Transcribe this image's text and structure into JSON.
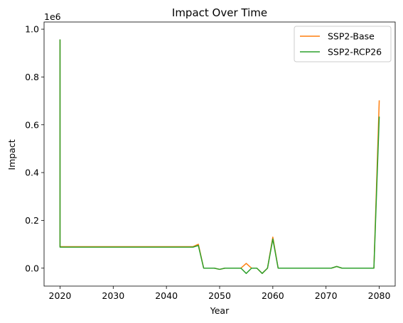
{
  "chart_data": {
    "type": "line",
    "title": "Impact Over Time",
    "xlabel": "Year",
    "ylabel": "Impact",
    "y_offset_label": "1e6",
    "xlim": [
      2017.0,
      2083.0
    ],
    "ylim": [
      -0.075,
      1.03
    ],
    "xticks": [
      2020,
      2030,
      2040,
      2050,
      2060,
      2070,
      2080
    ],
    "yticks": [
      0.0,
      0.2,
      0.4,
      0.6,
      0.8,
      1.0
    ],
    "ytick_labels": [
      "0.0",
      "0.2",
      "0.4",
      "0.6",
      "0.8",
      "1.0"
    ],
    "legend_position": "top-right",
    "grid": false,
    "series": [
      {
        "name": "SSP2-Base",
        "color": "#ff7f0e",
        "x": [
          2020,
          2020,
          2021,
          2025,
          2030,
          2035,
          2040,
          2045,
          2046,
          2047,
          2048,
          2049,
          2050,
          2051,
          2052,
          2053,
          2054,
          2055,
          2056,
          2057,
          2058,
          2059,
          2060,
          2061,
          2062,
          2065,
          2070,
          2071,
          2072,
          2073,
          2074,
          2075,
          2076,
          2077,
          2078,
          2079,
          2080
        ],
        "values": [
          0.955,
          0.09,
          0.09,
          0.09,
          0.09,
          0.09,
          0.09,
          0.09,
          0.1,
          0.0,
          0.0,
          0.0,
          -0.005,
          0.0,
          0.0,
          0.0,
          0.0,
          0.02,
          0.0,
          0.0,
          -0.022,
          0.0,
          0.13,
          0.0,
          0.0,
          0.0,
          0.0,
          0.0,
          0.007,
          0.0,
          0.0,
          0.0,
          0.0,
          0.0,
          0.0,
          0.0,
          0.7
        ]
      },
      {
        "name": "SSP2-RCP26",
        "color": "#2ca02c",
        "x": [
          2020,
          2020,
          2021,
          2025,
          2030,
          2035,
          2040,
          2045,
          2046,
          2047,
          2048,
          2049,
          2050,
          2051,
          2052,
          2053,
          2054,
          2055,
          2056,
          2057,
          2058,
          2059,
          2060,
          2061,
          2062,
          2065,
          2070,
          2071,
          2072,
          2073,
          2074,
          2075,
          2076,
          2077,
          2078,
          2079,
          2080
        ],
        "values": [
          0.955,
          0.088,
          0.088,
          0.088,
          0.088,
          0.088,
          0.088,
          0.088,
          0.095,
          0.0,
          0.0,
          0.0,
          -0.005,
          0.0,
          0.0,
          0.0,
          0.0,
          -0.022,
          0.0,
          0.0,
          -0.022,
          0.0,
          0.122,
          0.0,
          0.0,
          0.0,
          0.0,
          0.0,
          0.007,
          0.0,
          0.0,
          0.0,
          0.0,
          0.0,
          0.0,
          0.0,
          0.632
        ]
      }
    ]
  }
}
